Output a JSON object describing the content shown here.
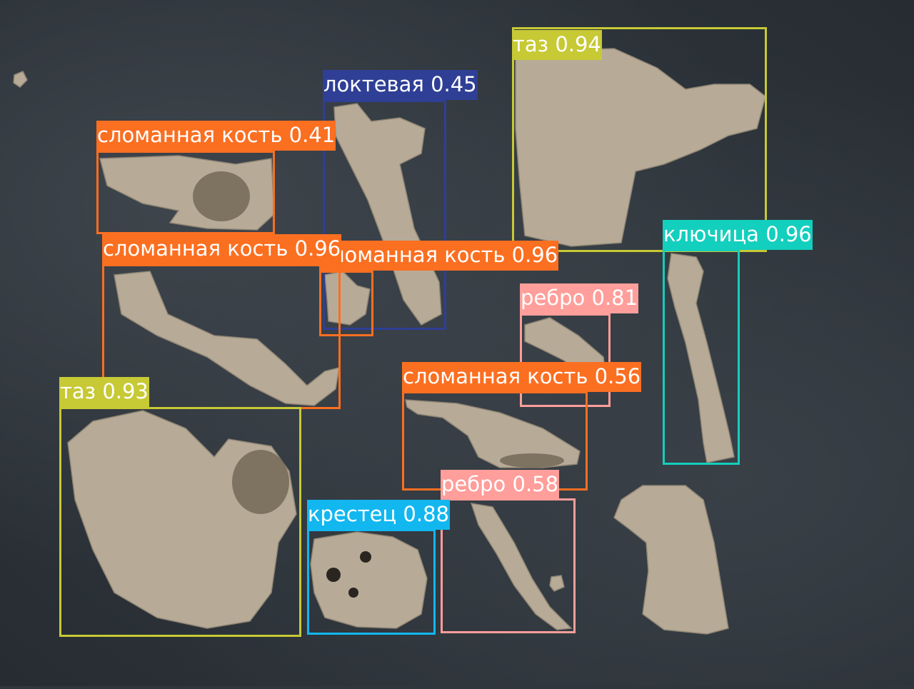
{
  "colors": {
    "taz": "#c7c935",
    "loktevaya": "#2f3f95",
    "slomannaya": "#fb6f21",
    "klyuchitsa": "#13cfbd",
    "rebro": "#ff9e9a",
    "krestets": "#12b7ef"
  },
  "detections": [
    {
      "label": "таз",
      "score": "0.94",
      "color_key": "taz"
    },
    {
      "label": "локтевая",
      "score": "0.45",
      "color_key": "loktevaya"
    },
    {
      "label": "сломанная кость",
      "score": "0.41",
      "color_key": "slomannaya"
    },
    {
      "label": "сломанная кость",
      "score": "0.96",
      "color_key": "slomannaya"
    },
    {
      "label": "сломанная кость",
      "score": "0.96",
      "color_key": "slomannaya"
    },
    {
      "label": "ключица",
      "score": "0.96",
      "color_key": "klyuchitsa"
    },
    {
      "label": "ребро",
      "score": "0.81",
      "color_key": "rebro"
    },
    {
      "label": "сломанная кость",
      "score": "0.56",
      "color_key": "slomannaya"
    },
    {
      "label": "таз",
      "score": "0.93",
      "color_key": "taz"
    },
    {
      "label": "ребро",
      "score": "0.58",
      "color_key": "rebro"
    },
    {
      "label": "крестец",
      "score": "0.88",
      "color_key": "krestets"
    }
  ]
}
